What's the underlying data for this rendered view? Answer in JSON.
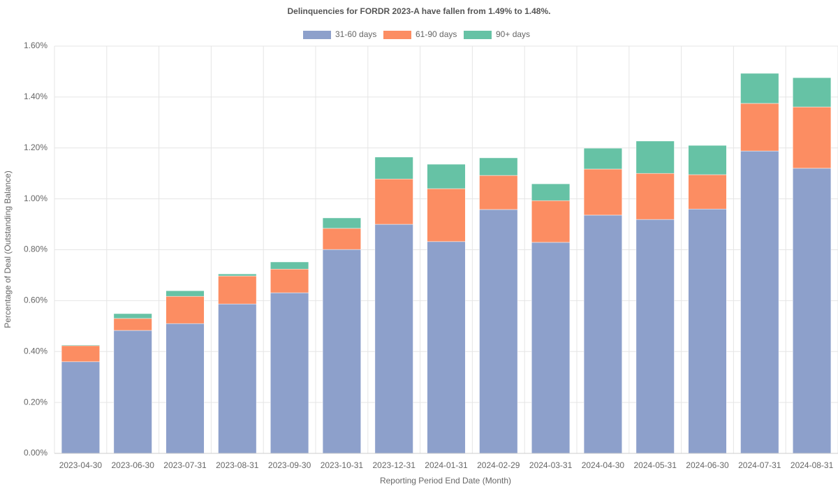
{
  "chart_data": {
    "type": "stacked_bar",
    "title": "Delinquencies for FORDR 2023-A have fallen from 1.49% to 1.48%.",
    "x_label": "Reporting Period End Date (Month)",
    "y_label": "Percentage of Deal (Outstanding Balance)",
    "categories": [
      "2023-04-30",
      "2023-06-30",
      "2023-07-31",
      "2023-08-31",
      "2023-09-30",
      "2023-10-31",
      "2023-12-31",
      "2024-01-31",
      "2024-02-29",
      "2024-03-31",
      "2024-04-30",
      "2024-05-31",
      "2024-06-30",
      "2024-07-31",
      "2024-08-31"
    ],
    "series": [
      {
        "name": "31-60 days",
        "color": "#8da0cb",
        "values": [
          0.36,
          0.483,
          0.51,
          0.587,
          0.631,
          0.801,
          0.9,
          0.832,
          0.958,
          0.829,
          0.936,
          0.919,
          0.96,
          1.188,
          1.12
        ]
      },
      {
        "name": "61-90 days",
        "color": "#fc8d62",
        "values": [
          0.063,
          0.047,
          0.107,
          0.11,
          0.093,
          0.083,
          0.178,
          0.208,
          0.134,
          0.164,
          0.181,
          0.181,
          0.135,
          0.187,
          0.241
        ]
      },
      {
        "name": "90+ days",
        "color": "#66c2a5",
        "values": [
          0.003,
          0.019,
          0.022,
          0.008,
          0.028,
          0.041,
          0.086,
          0.096,
          0.069,
          0.066,
          0.082,
          0.127,
          0.115,
          0.118,
          0.115
        ]
      }
    ],
    "ylim": [
      0,
      1.6
    ],
    "yticks": [
      {
        "value": 0,
        "label": "0.00%"
      },
      {
        "value": 0.2,
        "label": "0.20%"
      },
      {
        "value": 0.4,
        "label": "0.40%"
      },
      {
        "value": 0.6,
        "label": "0.60%"
      },
      {
        "value": 0.8,
        "label": "0.80%"
      },
      {
        "value": 1.0,
        "label": "1.00%"
      },
      {
        "value": 1.2,
        "label": "1.20%"
      },
      {
        "value": 1.4,
        "label": "1.40%"
      },
      {
        "value": 1.6,
        "label": "1.60%"
      }
    ],
    "grid": true,
    "legend": "top"
  }
}
